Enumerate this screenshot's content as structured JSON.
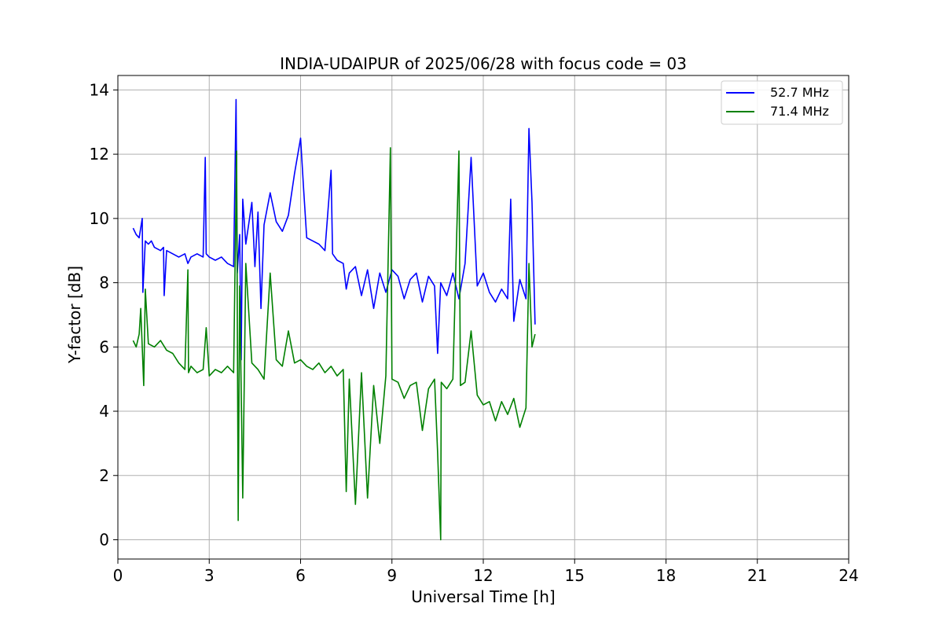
{
  "chart_data": {
    "type": "line",
    "title": "INDIA-UDAIPUR of 2025/06/28 with focus code = 03",
    "xlabel": "Universal Time [h]",
    "ylabel": "Y-factor [dB]",
    "xlim": [
      0,
      24
    ],
    "ylim": [
      -0.6,
      14.45
    ],
    "xticks": [
      0,
      3,
      6,
      9,
      12,
      15,
      18,
      21,
      24
    ],
    "yticks": [
      0,
      2,
      4,
      6,
      8,
      10,
      12,
      14
    ],
    "grid": true,
    "legend_position": "top-right",
    "series": [
      {
        "name": "52.7 MHz",
        "color": "#0000ff",
        "x": [
          0.5,
          0.6,
          0.7,
          0.8,
          0.82,
          0.9,
          1.0,
          1.1,
          1.2,
          1.4,
          1.5,
          1.52,
          1.6,
          1.8,
          2.0,
          2.2,
          2.3,
          2.4,
          2.6,
          2.8,
          2.87,
          2.9,
          3.0,
          3.2,
          3.4,
          3.6,
          3.8,
          3.88,
          3.92,
          4.0,
          4.05,
          4.1,
          4.2,
          4.4,
          4.5,
          4.6,
          4.7,
          4.8,
          5.0,
          5.2,
          5.4,
          5.6,
          5.8,
          6.0,
          6.1,
          6.2,
          6.4,
          6.6,
          6.8,
          7.0,
          7.05,
          7.2,
          7.4,
          7.5,
          7.6,
          7.8,
          8.0,
          8.2,
          8.4,
          8.6,
          8.8,
          9.0,
          9.2,
          9.4,
          9.6,
          9.8,
          10.0,
          10.2,
          10.4,
          10.5,
          10.6,
          10.8,
          11.0,
          11.2,
          11.4,
          11.6,
          11.8,
          12.0,
          12.2,
          12.4,
          12.6,
          12.8,
          12.9,
          13.0,
          13.2,
          13.4,
          13.5,
          13.6,
          13.7
        ],
        "y": [
          9.7,
          9.5,
          9.4,
          10.0,
          7.7,
          9.3,
          9.2,
          9.3,
          9.1,
          9.0,
          9.1,
          7.6,
          9.0,
          8.9,
          8.8,
          8.9,
          8.6,
          8.8,
          8.9,
          8.8,
          11.9,
          8.9,
          8.8,
          8.7,
          8.8,
          8.6,
          8.5,
          13.7,
          8.3,
          9.5,
          5.6,
          10.6,
          9.2,
          10.5,
          8.5,
          10.2,
          7.2,
          9.8,
          10.8,
          9.9,
          9.6,
          10.1,
          11.4,
          12.5,
          10.9,
          9.4,
          9.3,
          9.2,
          9.0,
          11.5,
          8.9,
          8.7,
          8.6,
          7.8,
          8.3,
          8.5,
          7.6,
          8.4,
          7.2,
          8.3,
          7.7,
          8.4,
          8.2,
          7.5,
          8.1,
          8.3,
          7.4,
          8.2,
          7.9,
          5.8,
          8.0,
          7.6,
          8.3,
          7.5,
          8.6,
          11.9,
          7.9,
          8.3,
          7.7,
          7.4,
          7.8,
          7.5,
          10.6,
          6.8,
          8.1,
          7.5,
          12.8,
          10.5,
          6.7
        ]
      },
      {
        "name": "71.4 MHz",
        "color": "#008000",
        "x": [
          0.5,
          0.6,
          0.7,
          0.75,
          0.8,
          0.85,
          0.9,
          1.0,
          1.2,
          1.4,
          1.6,
          1.8,
          2.0,
          2.2,
          2.3,
          2.32,
          2.4,
          2.6,
          2.8,
          2.9,
          3.0,
          3.2,
          3.4,
          3.6,
          3.8,
          3.9,
          3.95,
          4.0,
          4.1,
          4.2,
          4.4,
          4.6,
          4.8,
          5.0,
          5.2,
          5.4,
          5.6,
          5.8,
          6.0,
          6.2,
          6.4,
          6.6,
          6.8,
          7.0,
          7.2,
          7.4,
          7.5,
          7.6,
          7.8,
          8.0,
          8.2,
          8.4,
          8.6,
          8.8,
          8.95,
          9.0,
          9.2,
          9.4,
          9.6,
          9.8,
          10.0,
          10.2,
          10.4,
          10.5,
          10.6,
          10.62,
          10.8,
          11.0,
          11.2,
          11.25,
          11.4,
          11.6,
          11.8,
          12.0,
          12.2,
          12.4,
          12.6,
          12.8,
          13.0,
          13.2,
          13.4,
          13.5,
          13.6,
          13.7
        ],
        "y": [
          6.2,
          6.0,
          6.4,
          7.2,
          6.0,
          4.8,
          7.8,
          6.1,
          6.0,
          6.2,
          5.9,
          5.8,
          5.5,
          5.3,
          8.4,
          5.2,
          5.4,
          5.2,
          5.3,
          6.6,
          5.1,
          5.3,
          5.2,
          5.4,
          5.2,
          12.1,
          0.6,
          7.9,
          1.3,
          8.6,
          5.5,
          5.3,
          5.0,
          8.3,
          5.6,
          5.4,
          6.5,
          5.5,
          5.6,
          5.4,
          5.3,
          5.5,
          5.2,
          5.4,
          5.1,
          5.3,
          1.5,
          5.0,
          1.1,
          5.2,
          1.3,
          4.8,
          3.0,
          5.1,
          12.2,
          5.0,
          4.9,
          4.4,
          4.8,
          4.9,
          3.4,
          4.7,
          5.0,
          2.7,
          0.0,
          4.9,
          4.7,
          5.0,
          12.1,
          4.8,
          4.9,
          6.5,
          4.5,
          4.2,
          4.3,
          3.7,
          4.3,
          3.9,
          4.4,
          3.5,
          4.1,
          8.6,
          6.0,
          6.4
        ]
      }
    ]
  }
}
